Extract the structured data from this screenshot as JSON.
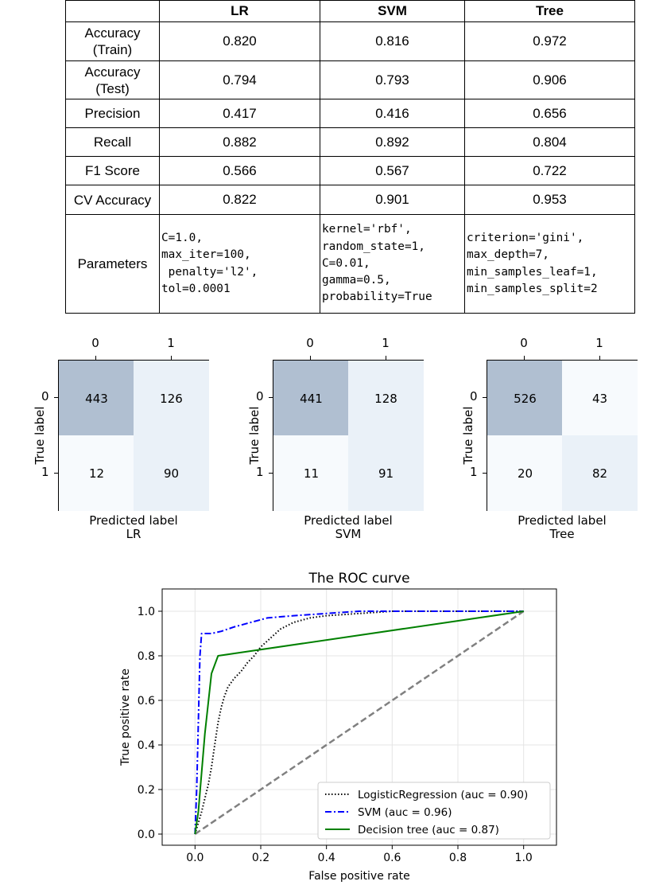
{
  "table": {
    "columns": [
      "",
      "LR",
      "SVM",
      "Tree"
    ],
    "rows": [
      {
        "label": "Accuracy\n(Train)",
        "values": [
          "0.820",
          "0.816",
          "0.972"
        ]
      },
      {
        "label": "Accuracy\n(Test)",
        "values": [
          "0.794",
          "0.793",
          "0.906"
        ]
      },
      {
        "label": "Precision",
        "values": [
          "0.417",
          "0.416",
          "0.656"
        ]
      },
      {
        "label": "Recall",
        "values": [
          "0.882",
          "0.892",
          "0.804"
        ]
      },
      {
        "label": "F1 Score",
        "values": [
          "0.566",
          "0.567",
          "0.722"
        ]
      },
      {
        "label": "CV Accuracy",
        "values": [
          "0.822",
          "0.901",
          "0.953"
        ]
      }
    ],
    "parameters": {
      "label": "Parameters",
      "values": [
        "C=1.0,\nmax_iter=100,\n penalty='l2',\ntol=0.0001",
        "kernel='rbf',\nrandom_state=1,\nC=0.01,\ngamma=0.5,\nprobability=True",
        "criterion='gini',\nmax_depth=7,\nmin_samples_leaf=1,\nmin_samples_split=2"
      ]
    }
  },
  "confusion_matrices": [
    {
      "name": "LR",
      "ylabel": "True label",
      "xlabel": "Predicted label",
      "col_ticks": [
        "0",
        "1"
      ],
      "row_ticks": [
        "0",
        "1"
      ],
      "cells": [
        [
          443,
          126
        ],
        [
          12,
          90
        ]
      ]
    },
    {
      "name": "SVM",
      "ylabel": "True label",
      "xlabel": "Predicted label",
      "col_ticks": [
        "0",
        "1"
      ],
      "row_ticks": [
        "0",
        "1"
      ],
      "cells": [
        [
          441,
          128
        ],
        [
          11,
          91
        ]
      ]
    },
    {
      "name": "Tree",
      "ylabel": "True label",
      "xlabel": "Predicted label",
      "col_ticks": [
        "0",
        "1"
      ],
      "row_ticks": [
        "0",
        "1"
      ],
      "cells": [
        [
          526,
          43
        ],
        [
          20,
          82
        ]
      ]
    }
  ],
  "cm_colors": {
    "high": "#b0bfd1",
    "low": "#f7fafd",
    "mid": "#eaf1f8"
  },
  "chart_data": {
    "type": "line",
    "title": "The ROC curve",
    "xlabel": "False positive rate",
    "ylabel": "True positive rate",
    "xlim": [
      -0.1,
      1.1
    ],
    "ylim": [
      -0.05,
      1.1
    ],
    "xticks": [
      "0.0",
      "0.2",
      "0.4",
      "0.6",
      "0.8",
      "1.0"
    ],
    "yticks": [
      "0.0",
      "0.2",
      "0.4",
      "0.6",
      "0.8",
      "1.0"
    ],
    "grid": true,
    "legend": "lower-right",
    "series": [
      {
        "name": "LogisticRegression (auc = 0.90)",
        "color": "#000000",
        "style": "dotted",
        "points": [
          [
            0,
            0
          ],
          [
            0.01,
            0.05
          ],
          [
            0.02,
            0.1
          ],
          [
            0.03,
            0.16
          ],
          [
            0.04,
            0.22
          ],
          [
            0.05,
            0.3
          ],
          [
            0.06,
            0.4
          ],
          [
            0.07,
            0.5
          ],
          [
            0.08,
            0.57
          ],
          [
            0.09,
            0.62
          ],
          [
            0.1,
            0.66
          ],
          [
            0.12,
            0.7
          ],
          [
            0.14,
            0.73
          ],
          [
            0.16,
            0.77
          ],
          [
            0.18,
            0.8
          ],
          [
            0.2,
            0.84
          ],
          [
            0.23,
            0.88
          ],
          [
            0.26,
            0.92
          ],
          [
            0.3,
            0.95
          ],
          [
            0.35,
            0.97
          ],
          [
            0.4,
            0.98
          ],
          [
            0.5,
            0.99
          ],
          [
            0.6,
            1.0
          ],
          [
            1.0,
            1.0
          ]
        ]
      },
      {
        "name": "SVM (auc = 0.96)",
        "color": "#0000ff",
        "style": "dashdot",
        "points": [
          [
            0,
            0
          ],
          [
            0.005,
            0.2
          ],
          [
            0.01,
            0.5
          ],
          [
            0.015,
            0.8
          ],
          [
            0.02,
            0.9
          ],
          [
            0.05,
            0.9
          ],
          [
            0.08,
            0.91
          ],
          [
            0.12,
            0.93
          ],
          [
            0.17,
            0.95
          ],
          [
            0.22,
            0.97
          ],
          [
            0.3,
            0.98
          ],
          [
            0.4,
            0.99
          ],
          [
            0.5,
            1.0
          ],
          [
            1.0,
            1.0
          ]
        ]
      },
      {
        "name": "Decision tree (auc = 0.87)",
        "color": "#008000",
        "style": "solid",
        "points": [
          [
            0,
            0
          ],
          [
            0.01,
            0.1
          ],
          [
            0.03,
            0.45
          ],
          [
            0.05,
            0.72
          ],
          [
            0.07,
            0.8
          ],
          [
            1.0,
            1.0
          ]
        ]
      },
      {
        "name": "",
        "color": "#808080",
        "style": "dashed",
        "points": [
          [
            0,
            0
          ],
          [
            1,
            1
          ]
        ]
      }
    ]
  }
}
